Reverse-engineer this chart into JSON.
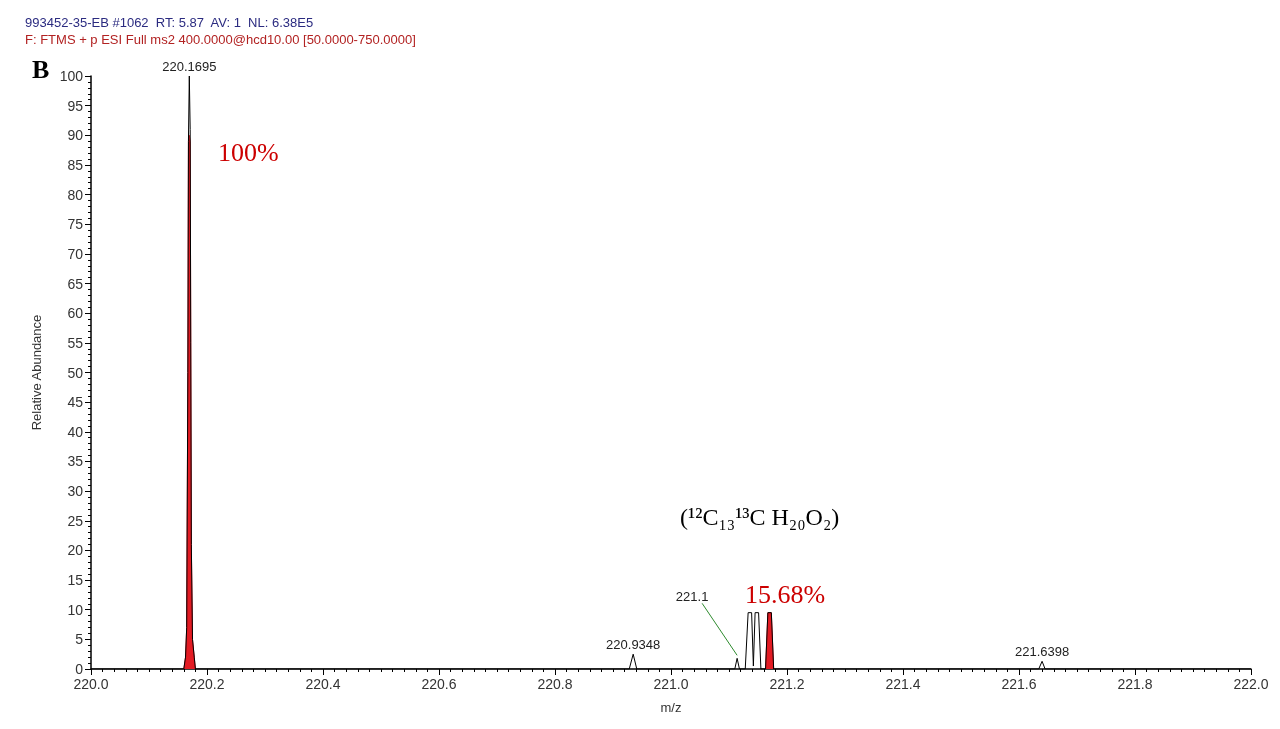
{
  "chart_data": {
    "type": "line",
    "title": "993452-35-EB #1062  RT: 5.87  AV: 1  NL: 6.38E5",
    "subtitle": "F: FTMS + p ESI Full ms2 400.0000@hcd10.00 [50.0000-750.0000]",
    "xlabel": "m/z",
    "ylabel": "Relative Abundance",
    "series": [
      {
        "type": "area",
        "color": "#e31b23",
        "x": [
          220.16,
          220.163,
          220.165,
          220.167,
          220.168,
          220.1695,
          220.171,
          220.172,
          220.173,
          220.175,
          220.178,
          220.18,
          220.181,
          221.163,
          221.167,
          221.173,
          221.177
        ],
        "values": [
          0,
          2,
          7,
          50,
          89,
          90,
          89,
          55,
          21,
          5,
          2,
          0,
          null,
          0,
          9.5,
          9.5,
          0
        ]
      },
      {
        "type": "line",
        "color": "#000000",
        "x": [
          220.0,
          220.16,
          220.163,
          220.165,
          220.167,
          220.168,
          220.1695,
          220.171,
          220.172,
          220.173,
          220.175,
          220.178,
          220.18,
          220.928,
          220.9348,
          220.941,
          221.11,
          221.114,
          221.118,
          221.128,
          221.133,
          221.139,
          221.142,
          221.145,
          221.151,
          221.155,
          221.163,
          221.167,
          221.173,
          221.177,
          221.634,
          221.6398,
          221.645,
          222.0
        ],
        "values": [
          0,
          0,
          2,
          7,
          50,
          89,
          100,
          91,
          55,
          21,
          5,
          2,
          0,
          0,
          2.5,
          0,
          0,
          1.8,
          0,
          0,
          9.5,
          9.5,
          0.5,
          9.5,
          9.5,
          0,
          0,
          9.5,
          9.5,
          0,
          0,
          1.3,
          0,
          0
        ]
      }
    ],
    "xlim": [
      220.0,
      222.0
    ],
    "xticks": [
      {
        "value": 220.0,
        "label": "220.0"
      },
      {
        "value": 220.2,
        "label": "220.2"
      },
      {
        "value": 220.4,
        "label": "220.4"
      },
      {
        "value": 220.6,
        "label": "220.6"
      },
      {
        "value": 220.8,
        "label": "220.8"
      },
      {
        "value": 221.0,
        "label": "221.0"
      },
      {
        "value": 221.2,
        "label": "221.2"
      },
      {
        "value": 221.4,
        "label": "221.4"
      },
      {
        "value": 221.6,
        "label": "221.6"
      },
      {
        "value": 221.8,
        "label": "221.8"
      },
      {
        "value": 222.0,
        "label": "222.0"
      }
    ],
    "ylim": [
      0,
      100
    ],
    "yticks": [
      0,
      5,
      10,
      15,
      20,
      25,
      30,
      35,
      40,
      45,
      50,
      55,
      60,
      65,
      70,
      75,
      80,
      85,
      90,
      95,
      100
    ],
    "grid": false,
    "marker": "none",
    "line_style": "solid",
    "annotations": [
      "B",
      {
        "text": "220.1695",
        "x": 220.1695,
        "y": 100
      },
      {
        "text": "220.9348",
        "x": 220.9348,
        "y": 2.5
      },
      {
        "text": "221.6398",
        "x": 221.6398,
        "y": 1.3
      },
      {
        "text": "221.1",
        "x": 221.114,
        "y": 1.8
      },
      "(¹²C₁₃¹³C H₂₀O₂)",
      "100%",
      "15.68%"
    ]
  }
}
